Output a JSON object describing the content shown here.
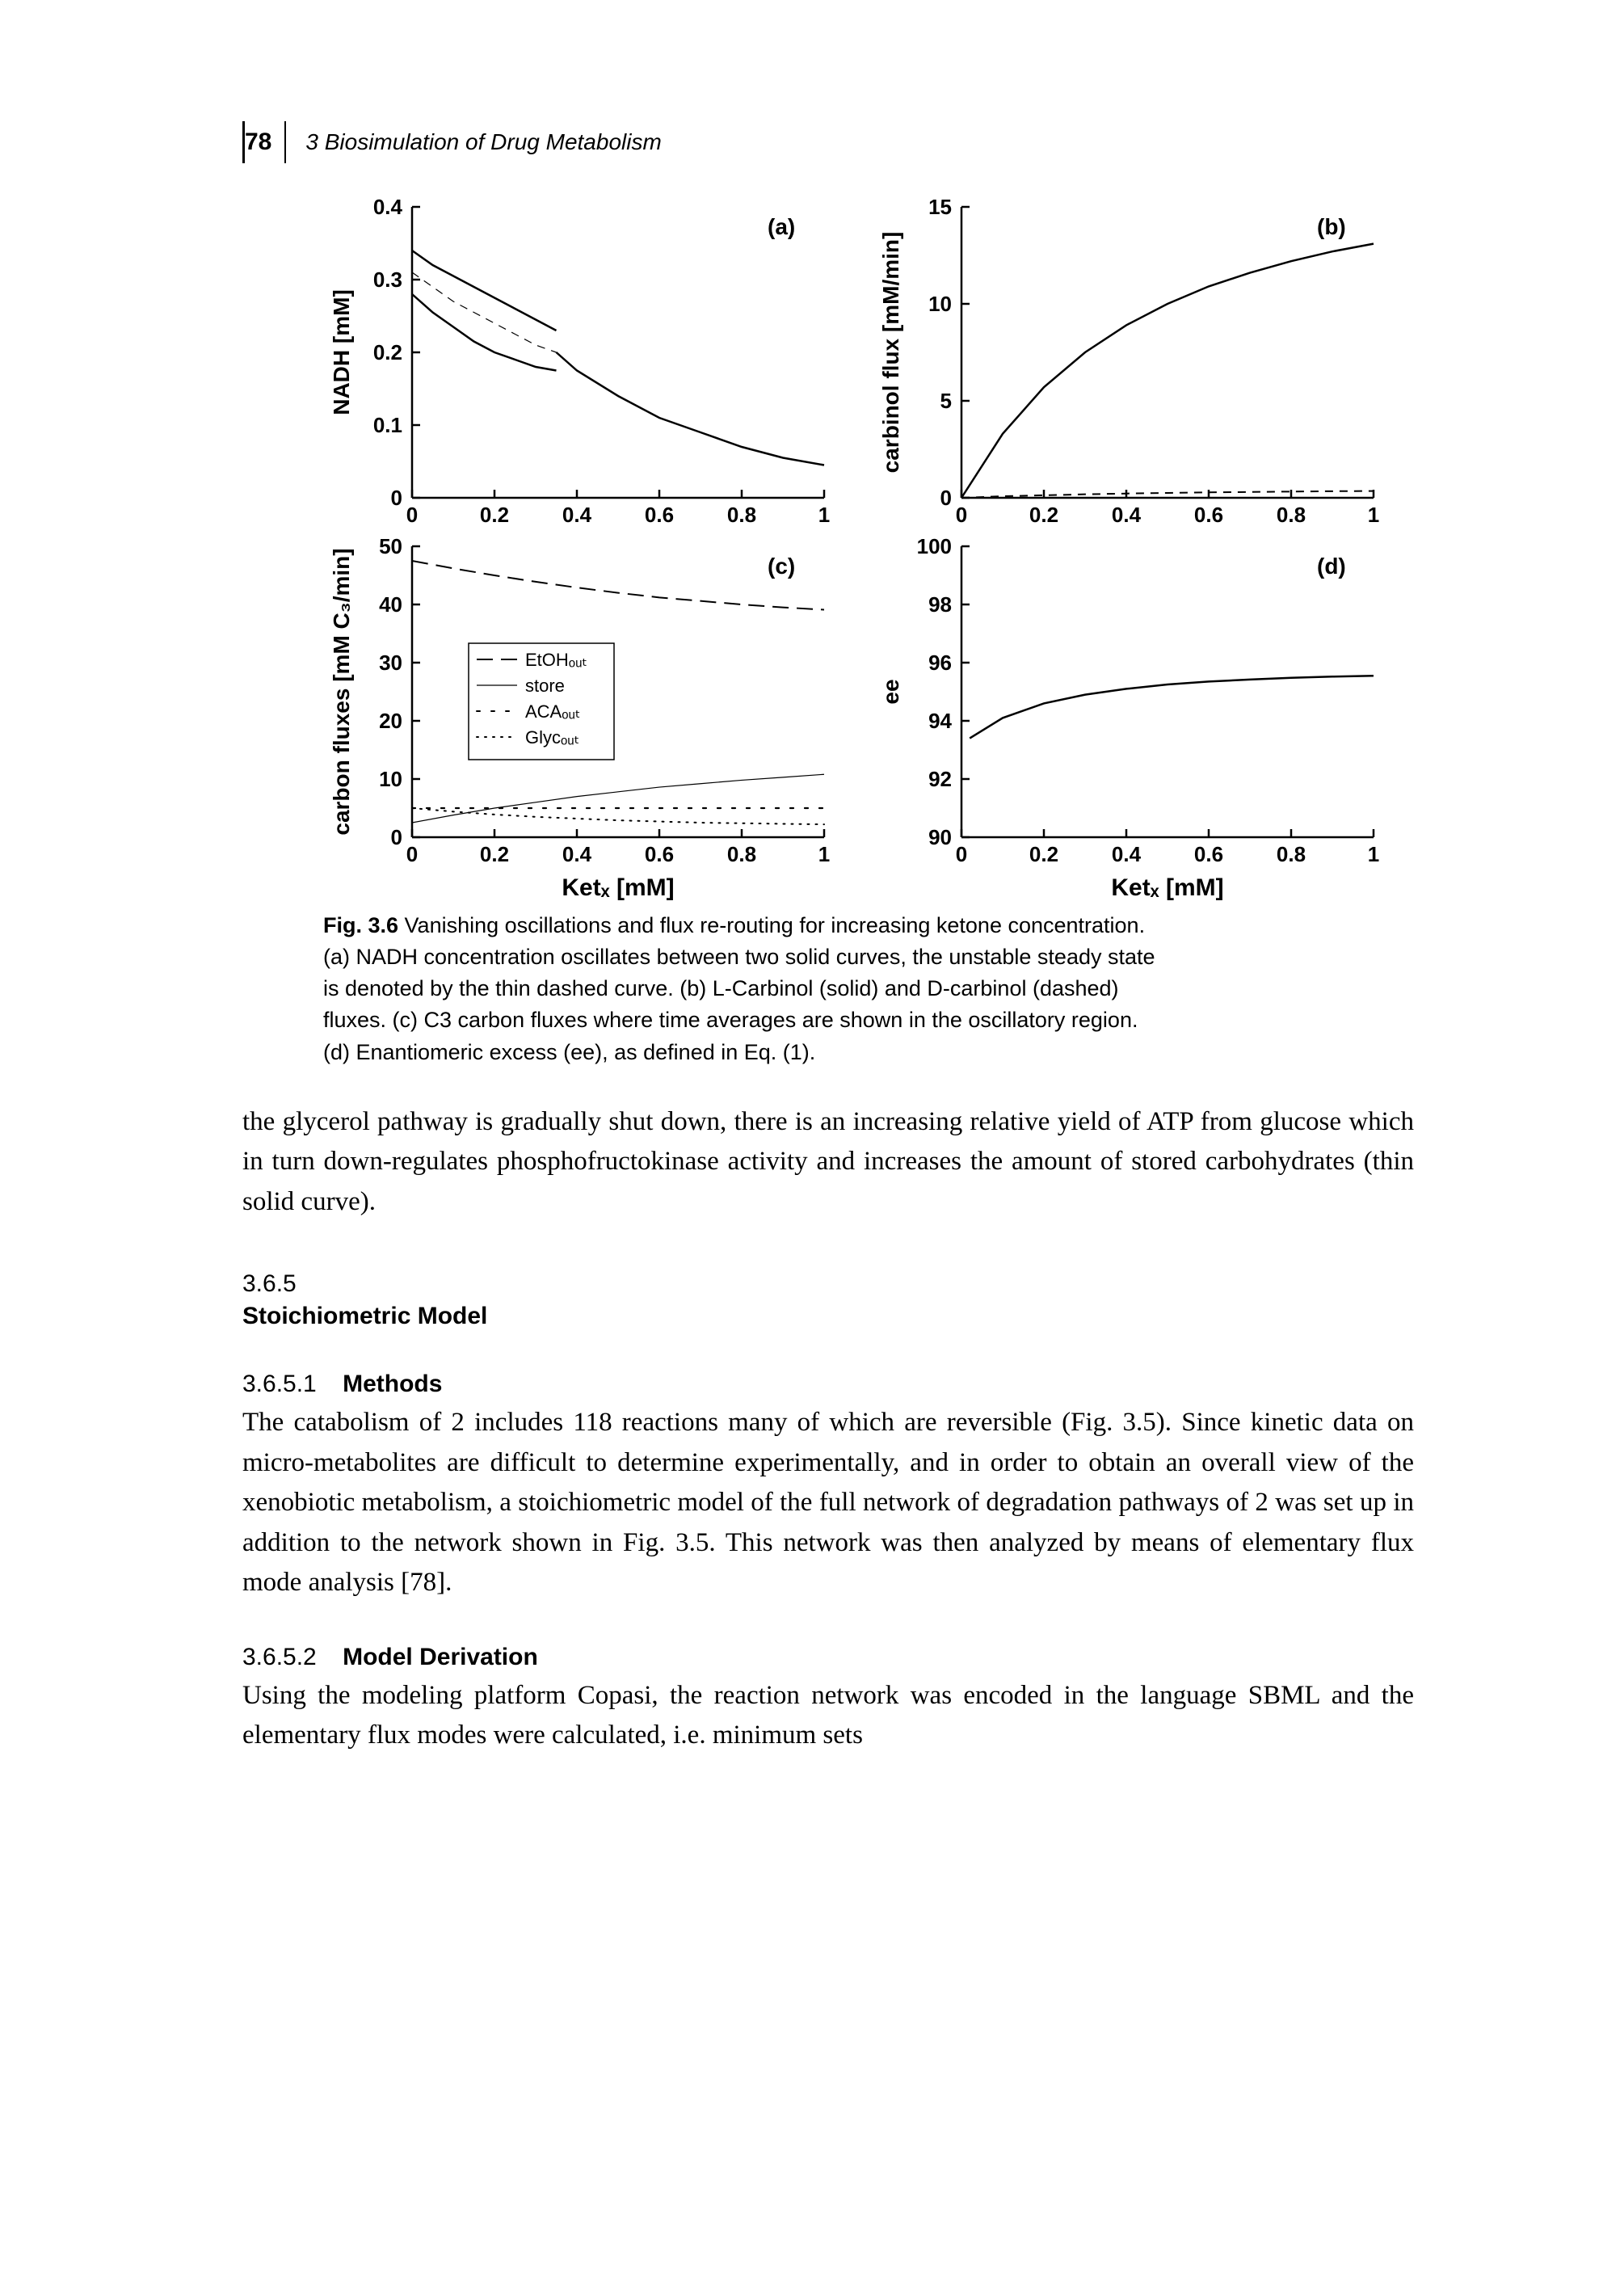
{
  "header": {
    "page_number": "78",
    "running_head": "3 Biosimulation of Drug Metabolism"
  },
  "figure": {
    "label": "Fig. 3.6",
    "caption_text": "Vanishing oscillations and flux re-routing for increasing ketone concentration. (a) NADH concentration oscillates between two solid curves, the unstable steady state is denoted by the thin dashed curve. (b) L-Carbinol (solid) and D-carbinol (dashed) fluxes. (c) C3 carbon fluxes where time averages are shown in the oscillatory region. (d) Enantiomeric excess (ee), as defined in Eq. (1).",
    "xaxis_label": "Ketₓ [mM]",
    "panels": {
      "a": {
        "tag": "(a)",
        "type": "line",
        "ylabel": "NADH [mM]",
        "xlim": [
          0,
          1
        ],
        "ylim": [
          0,
          0.4
        ],
        "xticks": [
          0,
          0.2,
          0.4,
          0.6,
          0.8,
          1
        ],
        "yticks": [
          0,
          0.1,
          0.2,
          0.3,
          0.4
        ],
        "curves": [
          {
            "style": "solid",
            "width": 2.5,
            "data": [
              [
                0,
                0.34
              ],
              [
                0.05,
                0.32
              ],
              [
                0.1,
                0.305
              ],
              [
                0.15,
                0.29
              ],
              [
                0.2,
                0.275
              ],
              [
                0.25,
                0.26
              ],
              [
                0.3,
                0.245
              ],
              [
                0.35,
                0.23
              ]
            ]
          },
          {
            "style": "dashed",
            "width": 1.2,
            "data": [
              [
                0,
                0.31
              ],
              [
                0.05,
                0.29
              ],
              [
                0.1,
                0.27
              ],
              [
                0.15,
                0.255
              ],
              [
                0.2,
                0.24
              ],
              [
                0.25,
                0.225
              ],
              [
                0.3,
                0.21
              ],
              [
                0.35,
                0.2
              ]
            ]
          },
          {
            "style": "solid",
            "width": 2.5,
            "data": [
              [
                0,
                0.28
              ],
              [
                0.05,
                0.255
              ],
              [
                0.1,
                0.235
              ],
              [
                0.15,
                0.215
              ],
              [
                0.2,
                0.2
              ],
              [
                0.25,
                0.19
              ],
              [
                0.3,
                0.18
              ],
              [
                0.35,
                0.175
              ]
            ]
          },
          {
            "style": "solid",
            "width": 2.5,
            "data": [
              [
                0.35,
                0.2
              ],
              [
                0.4,
                0.175
              ],
              [
                0.5,
                0.14
              ],
              [
                0.6,
                0.11
              ],
              [
                0.7,
                0.09
              ],
              [
                0.8,
                0.07
              ],
              [
                0.9,
                0.055
              ],
              [
                1.0,
                0.045
              ]
            ]
          }
        ]
      },
      "b": {
        "tag": "(b)",
        "type": "line",
        "ylabel": "carbinol flux [mM/min]",
        "xlim": [
          0,
          1
        ],
        "ylim": [
          0,
          15
        ],
        "xticks": [
          0,
          0.2,
          0.4,
          0.6,
          0.8,
          1
        ],
        "yticks": [
          0,
          5,
          10,
          15
        ],
        "curves": [
          {
            "style": "solid",
            "width": 2.5,
            "data": [
              [
                0,
                0
              ],
              [
                0.1,
                3.3
              ],
              [
                0.2,
                5.7
              ],
              [
                0.3,
                7.5
              ],
              [
                0.4,
                8.9
              ],
              [
                0.5,
                10.0
              ],
              [
                0.6,
                10.9
              ],
              [
                0.7,
                11.6
              ],
              [
                0.8,
                12.2
              ],
              [
                0.9,
                12.7
              ],
              [
                1.0,
                13.1
              ]
            ]
          },
          {
            "style": "dashed",
            "width": 2.0,
            "data": [
              [
                0,
                0
              ],
              [
                0.1,
                0.08
              ],
              [
                0.2,
                0.13
              ],
              [
                0.3,
                0.18
              ],
              [
                0.4,
                0.22
              ],
              [
                0.5,
                0.25
              ],
              [
                0.6,
                0.28
              ],
              [
                0.7,
                0.3
              ],
              [
                0.8,
                0.32
              ],
              [
                0.9,
                0.34
              ],
              [
                1.0,
                0.35
              ]
            ]
          }
        ]
      },
      "c": {
        "tag": "(c)",
        "type": "line",
        "ylabel": "carbon fluxes [mM C₃/min]",
        "xlim": [
          0,
          1
        ],
        "ylim": [
          0,
          50
        ],
        "xticks": [
          0,
          0.2,
          0.4,
          0.6,
          0.8,
          1
        ],
        "yticks": [
          0,
          10,
          20,
          30,
          40,
          50
        ],
        "legend": {
          "items": [
            {
              "label": "EtOHₒᵤₜ",
              "style": "longdash"
            },
            {
              "label": "store",
              "style": "thin"
            },
            {
              "label": "ACAₒᵤₜ",
              "style": "bigdot"
            },
            {
              "label": "Glycₒᵤₜ",
              "style": "dot"
            }
          ]
        },
        "curves": [
          {
            "style": "longdash",
            "width": 2.0,
            "data": [
              [
                0,
                47.5
              ],
              [
                0.1,
                46.2
              ],
              [
                0.2,
                45.0
              ],
              [
                0.3,
                43.9
              ],
              [
                0.4,
                42.9
              ],
              [
                0.5,
                42.0
              ],
              [
                0.6,
                41.2
              ],
              [
                0.7,
                40.6
              ],
              [
                0.8,
                40.0
              ],
              [
                0.9,
                39.5
              ],
              [
                1.0,
                39.1
              ]
            ]
          },
          {
            "style": "solid",
            "width": 1.2,
            "data": [
              [
                0,
                2.5
              ],
              [
                0.1,
                3.8
              ],
              [
                0.2,
                5.0
              ],
              [
                0.3,
                6.0
              ],
              [
                0.4,
                7.0
              ],
              [
                0.5,
                7.8
              ],
              [
                0.6,
                8.6
              ],
              [
                0.7,
                9.2
              ],
              [
                0.8,
                9.8
              ],
              [
                0.9,
                10.3
              ],
              [
                1.0,
                10.8
              ]
            ]
          },
          {
            "style": "bigdot",
            "width": 2.2,
            "data": [
              [
                0,
                5
              ],
              [
                0.2,
                5
              ],
              [
                0.4,
                5
              ],
              [
                0.6,
                5
              ],
              [
                0.8,
                5
              ],
              [
                1.0,
                5
              ]
            ]
          },
          {
            "style": "dot",
            "width": 2.0,
            "data": [
              [
                0,
                5.0
              ],
              [
                0.1,
                4.4
              ],
              [
                0.2,
                3.9
              ],
              [
                0.3,
                3.5
              ],
              [
                0.4,
                3.2
              ],
              [
                0.5,
                2.9
              ],
              [
                0.6,
                2.7
              ],
              [
                0.7,
                2.5
              ],
              [
                0.8,
                2.4
              ],
              [
                0.9,
                2.3
              ],
              [
                1.0,
                2.2
              ]
            ]
          }
        ]
      },
      "d": {
        "tag": "(d)",
        "type": "line",
        "ylabel": "ee",
        "xlim": [
          0,
          1
        ],
        "ylim": [
          90,
          100
        ],
        "xticks": [
          0,
          0.2,
          0.4,
          0.6,
          0.8,
          1
        ],
        "yticks": [
          90,
          92,
          94,
          96,
          98,
          100
        ],
        "curves": [
          {
            "style": "solid",
            "width": 2.5,
            "data": [
              [
                0.02,
                93.4
              ],
              [
                0.1,
                94.1
              ],
              [
                0.2,
                94.6
              ],
              [
                0.3,
                94.9
              ],
              [
                0.4,
                95.1
              ],
              [
                0.5,
                95.25
              ],
              [
                0.6,
                95.35
              ],
              [
                0.7,
                95.42
              ],
              [
                0.8,
                95.48
              ],
              [
                0.9,
                95.52
              ],
              [
                1.0,
                95.55
              ]
            ]
          }
        ]
      }
    },
    "colors": {
      "axis": "#000000",
      "line": "#000000",
      "bg": "#ffffff"
    },
    "axis_linewidth": 2.5,
    "tick_len": 10
  },
  "paragraph1": "the glycerol pathway is gradually shut down, there is an increasing relative yield of ATP from glucose which in turn down-regulates phosphofructokinase activity and increases the amount of stored carbohydrates (thin solid curve).",
  "section": {
    "number": "3.6.5",
    "title": "Stoichiometric Model"
  },
  "sub1": {
    "number": "3.6.5.1",
    "title": "Methods",
    "text": "The catabolism of 2 includes 118 reactions many of which are reversible (Fig. 3.5). Since kinetic data on micro-metabolites are difficult to determine experimentally, and in order to obtain an overall view of the xenobiotic metabolism, a stoichiometric model of the full network of degradation pathways of 2 was set up in addition to the network shown in Fig. 3.5. This network was then analyzed by means of elementary flux mode analysis [78]."
  },
  "sub2": {
    "number": "3.6.5.2",
    "title": "Model Derivation",
    "text": "Using the modeling platform Copasi, the reaction network was encoded in the language SBML and the elementary flux modes were calculated, i.e. minimum sets"
  }
}
